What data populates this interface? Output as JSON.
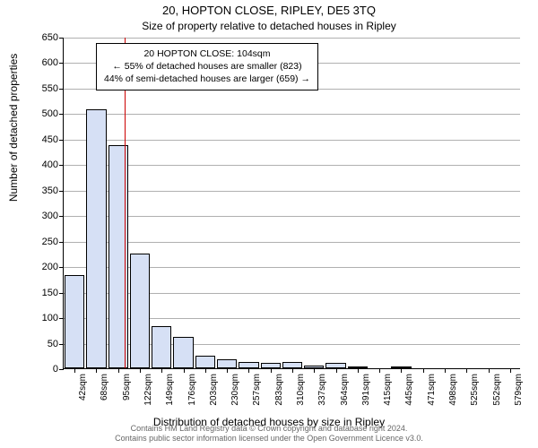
{
  "chart": {
    "type": "histogram",
    "title_main": "20, HOPTON CLOSE, RIPLEY, DE5 3TQ",
    "title_sub": "Size of property relative to detached houses in Ripley",
    "ylabel": "Number of detached properties",
    "xlabel": "Distribution of detached houses by size in Ripley",
    "title_fontsize": 13,
    "subtitle_fontsize": 12,
    "label_fontsize": 12,
    "tick_fontsize": 11,
    "xtick_fontsize": 10,
    "background_color": "#ffffff",
    "grid_color": "#b0b0b0",
    "axis_color": "#000000",
    "bar_fill": "#d6e0f5",
    "bar_border": "#000000",
    "ref_line_color": "#cc0000",
    "ref_value": 104,
    "ylim": [
      0,
      650
    ],
    "ytick_step": 50,
    "yticks": [
      0,
      50,
      100,
      150,
      200,
      250,
      300,
      350,
      400,
      450,
      500,
      550,
      600,
      650
    ],
    "xticks": [
      "42sqm",
      "68sqm",
      "95sqm",
      "122sqm",
      "149sqm",
      "176sqm",
      "203sqm",
      "230sqm",
      "257sqm",
      "283sqm",
      "310sqm",
      "337sqm",
      "364sqm",
      "391sqm",
      "415sqm",
      "445sqm",
      "471sqm",
      "498sqm",
      "525sqm",
      "552sqm",
      "579sqm"
    ],
    "bars": [
      {
        "label": "42sqm",
        "value": 182
      },
      {
        "label": "68sqm",
        "value": 508
      },
      {
        "label": "95sqm",
        "value": 438
      },
      {
        "label": "122sqm",
        "value": 225
      },
      {
        "label": "149sqm",
        "value": 82
      },
      {
        "label": "176sqm",
        "value": 62
      },
      {
        "label": "203sqm",
        "value": 25
      },
      {
        "label": "230sqm",
        "value": 18
      },
      {
        "label": "257sqm",
        "value": 12
      },
      {
        "label": "283sqm",
        "value": 10
      },
      {
        "label": "310sqm",
        "value": 12
      },
      {
        "label": "337sqm",
        "value": 6
      },
      {
        "label": "364sqm",
        "value": 10
      },
      {
        "label": "391sqm",
        "value": 3
      },
      {
        "label": "415sqm",
        "value": 0
      },
      {
        "label": "445sqm",
        "value": 3
      },
      {
        "label": "471sqm",
        "value": 0
      },
      {
        "label": "498sqm",
        "value": 0
      },
      {
        "label": "525sqm",
        "value": 0
      },
      {
        "label": "552sqm",
        "value": 0
      },
      {
        "label": "579sqm",
        "value": 0
      }
    ],
    "bar_width_ratio": 0.92,
    "annotation": {
      "line1": "20 HOPTON CLOSE: 104sqm",
      "line2": "← 55% of detached houses are smaller (823)",
      "line3": "44% of semi-detached houses are larger (659) →",
      "border_color": "#000000",
      "background": "#ffffff",
      "fontsize": 10.5
    },
    "footer_line1": "Contains HM Land Registry data © Crown copyright and database right 2024.",
    "footer_line2": "Contains public sector information licensed under the Open Government Licence v3.0."
  }
}
